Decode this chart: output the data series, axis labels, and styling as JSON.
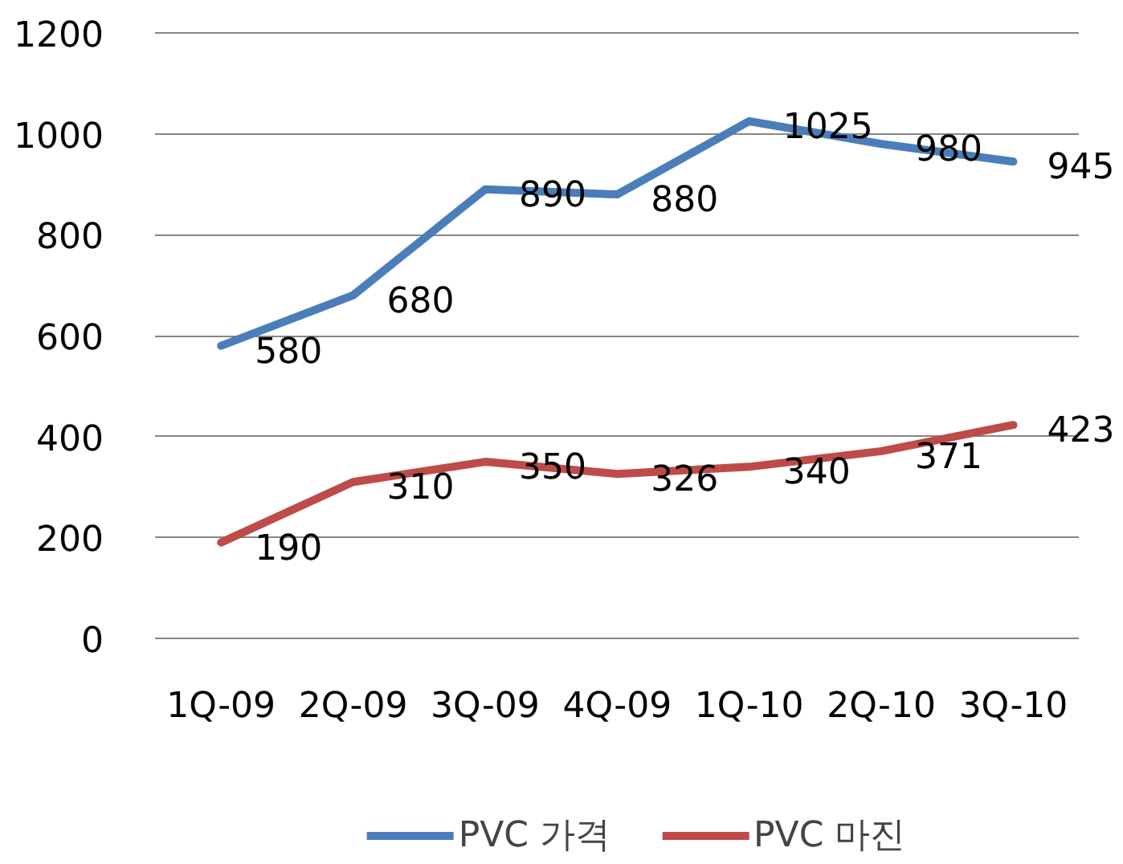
{
  "chart_data": {
    "type": "line",
    "categories": [
      "1Q-09",
      "2Q-09",
      "3Q-09",
      "4Q-09",
      "1Q-10",
      "2Q-10",
      "3Q-10"
    ],
    "series": [
      {
        "name": "PVC 가격",
        "color": "#4a7ebb",
        "values": [
          580,
          680,
          890,
          880,
          1025,
          980,
          945
        ]
      },
      {
        "name": "PVC 마진",
        "color": "#be4b48",
        "values": [
          190,
          310,
          350,
          326,
          340,
          371,
          423
        ]
      }
    ],
    "ylim": [
      0,
      1200
    ],
    "yticks": [
      0,
      200,
      400,
      600,
      800,
      1000,
      1200
    ],
    "grid": "y",
    "legend": "bottom",
    "data_labels": true,
    "line_style": "solid"
  }
}
